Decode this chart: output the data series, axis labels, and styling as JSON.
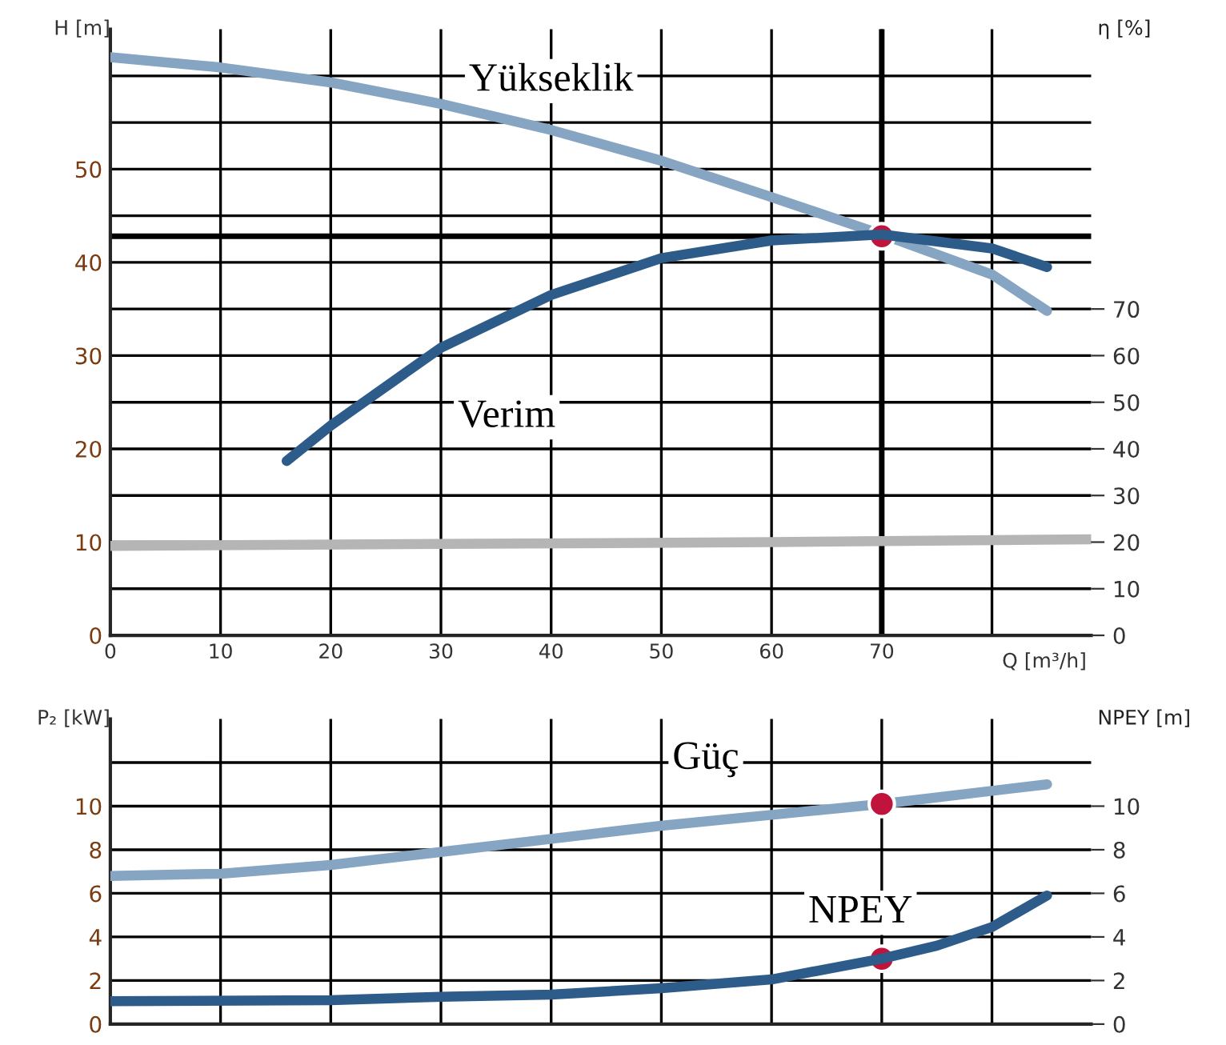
{
  "chart_data": [
    {
      "type": "line",
      "ylabel": "H [m]",
      "y2label": "η [%]",
      "xlabel": "Q [m³/h]",
      "xlim": [
        0,
        89
      ],
      "xticks": [
        0,
        10,
        20,
        30,
        40,
        50,
        60,
        70,
        {
          "value": 80,
          "label": null
        }
      ],
      "ylim": [
        0,
        65
      ],
      "yticks": [
        0,
        {
          "value": 5,
          "label": null
        },
        10,
        {
          "value": 15,
          "label": null
        },
        20,
        {
          "value": 25,
          "label": null
        },
        30,
        {
          "value": 35,
          "label": null
        },
        40,
        {
          "value": 45,
          "label": null
        },
        50,
        {
          "value": 55,
          "label": null
        },
        {
          "value": 60,
          "label": null
        }
      ],
      "y2lim": [
        0,
        130
      ],
      "y2ticks": [
        0,
        10,
        20,
        30,
        40,
        50,
        60,
        70
      ],
      "grid": true,
      "series": [
        {
          "name": "Yükseklik",
          "color": "#86a5c3",
          "x": [
            0,
            10,
            20,
            30,
            40,
            50,
            60,
            70,
            80,
            85
          ],
          "values": [
            62,
            60.9,
            59.3,
            57,
            54.2,
            50.9,
            47,
            43,
            38.7,
            34.8
          ]
        },
        {
          "name": "Verim",
          "color": "#2e5c8a",
          "axis": "y2",
          "x": [
            16,
            20,
            30,
            40,
            50,
            60,
            70,
            80,
            85
          ],
          "values": [
            37.4,
            45,
            61.7,
            73,
            80.9,
            84.7,
            86,
            83,
            79
          ]
        },
        {
          "color": "#b5b5b5",
          "x": [
            0,
            30,
            60,
            89
          ],
          "values": [
            9.6,
            9.8,
            10,
            10.3
          ]
        },
        {
          "type": "scatter",
          "color": "#c0143c",
          "x": [
            70
          ],
          "values": [
            42.8
          ]
        }
      ],
      "ref_lines": [
        {
          "axis": "y",
          "value": 42.8,
          "color": "#000000"
        },
        {
          "axis": "x",
          "value": 70,
          "color": "#000000"
        }
      ]
    },
    {
      "type": "line",
      "ylabel": "P₂ [kW]",
      "y2label": "NPEY [m]",
      "xlim": [
        0,
        89
      ],
      "xticks": [
        {
          "value": 10,
          "label": null
        },
        {
          "value": 20,
          "label": null
        },
        {
          "value": 30,
          "label": null
        },
        {
          "value": 40,
          "label": null
        },
        {
          "value": 50,
          "label": null
        },
        {
          "value": 60,
          "label": null
        },
        {
          "value": 70,
          "label": null
        },
        {
          "value": 80,
          "label": null
        }
      ],
      "ylim": [
        0,
        14
      ],
      "yticks": [
        0,
        2,
        4,
        6,
        8,
        10,
        {
          "value": 12,
          "label": null
        }
      ],
      "y2lim": [
        0,
        14
      ],
      "y2ticks": [
        0,
        2,
        4,
        6,
        8,
        10
      ],
      "grid": true,
      "tick_labels": "y",
      "series": [
        {
          "name": "Güç",
          "color": "#86a5c3",
          "x": [
            0,
            10,
            20,
            30,
            40,
            50,
            60,
            70,
            80,
            85
          ],
          "values": [
            6.8,
            6.9,
            7.3,
            7.9,
            8.5,
            9.1,
            9.6,
            10.1,
            10.7,
            11.0
          ]
        },
        {
          "name": "NPEY",
          "color": "#2e5c8a",
          "axis": "y2",
          "x": [
            0,
            20,
            30,
            40,
            50,
            60,
            70,
            75,
            80,
            85
          ],
          "values": [
            1.05,
            1.1,
            1.25,
            1.35,
            1.65,
            2.05,
            3.0,
            3.6,
            4.45,
            5.9
          ]
        },
        {
          "type": "scatter",
          "color": "#c0143c",
          "x": [
            70,
            70
          ],
          "values": [
            10.1,
            3.0
          ]
        }
      ]
    }
  ]
}
